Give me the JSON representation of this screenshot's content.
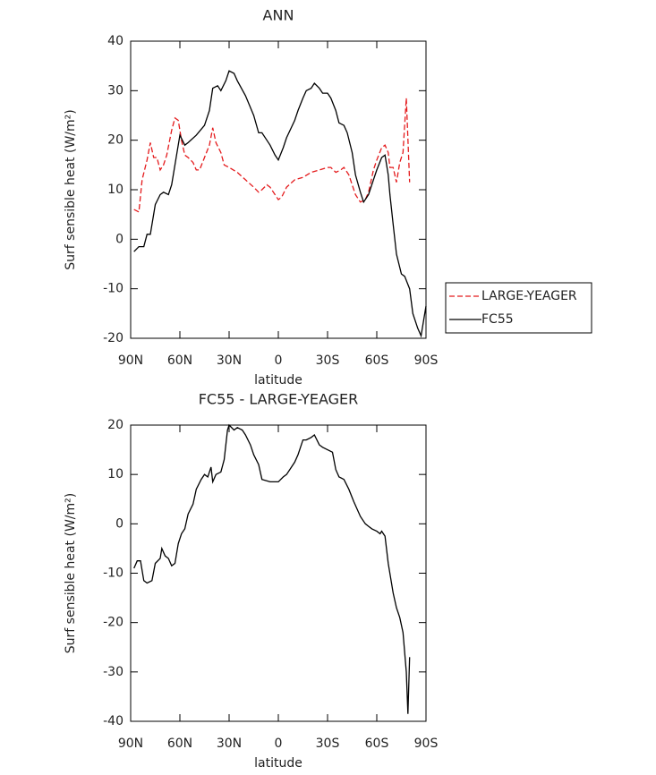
{
  "chart_data": [
    {
      "type": "line",
      "title": "ANN",
      "xlabel": "latitude",
      "ylabel": "Surf sensible heat (W/m²)",
      "xlim": [
        90,
        -90
      ],
      "xticks": [
        {
          "value": 90,
          "label": "90N"
        },
        {
          "value": 60,
          "label": "60N"
        },
        {
          "value": 30,
          "label": "30N"
        },
        0,
        {
          "value": -30,
          "label": "30S"
        },
        {
          "value": -60,
          "label": "60S"
        },
        {
          "value": -90,
          "label": "90S"
        }
      ],
      "ylim": [
        -20,
        40
      ],
      "yticks": [
        -20,
        -10,
        0,
        10,
        20,
        30,
        40
      ],
      "legend": "outside-right",
      "series": [
        {
          "name": "LARGE-YEAGER",
          "color": "#e41a1c",
          "dash": true,
          "x": [
            88,
            85,
            83,
            80,
            78,
            76,
            74,
            72,
            70,
            68,
            65,
            63,
            61,
            59,
            57,
            55,
            52,
            50,
            48,
            45,
            42,
            40,
            38,
            35,
            33,
            30,
            25,
            20,
            15,
            12,
            10,
            7,
            5,
            2,
            0,
            -2,
            -5,
            -10,
            -15,
            -20,
            -25,
            -30,
            -32,
            -35,
            -38,
            -40,
            -43,
            -47,
            -50,
            -53,
            -55,
            -58,
            -60,
            -63,
            -65,
            -67,
            -68,
            -70,
            -72,
            -74,
            -76,
            -78,
            -80
          ],
          "values": [
            6,
            5.5,
            12,
            16,
            19.5,
            16.5,
            16.5,
            14,
            15,
            17,
            22,
            24.5,
            24,
            20,
            17,
            16.5,
            15.5,
            14,
            14,
            16.5,
            19,
            22.5,
            19.5,
            17.5,
            15,
            14.5,
            13.5,
            12,
            10.5,
            9.5,
            10,
            11,
            10.5,
            9,
            8,
            8.5,
            10.5,
            12,
            12.5,
            13.5,
            14,
            14.5,
            14.5,
            13.5,
            14,
            14.5,
            13,
            9,
            7.5,
            8,
            9.5,
            14,
            16,
            18.5,
            19,
            17.5,
            14.5,
            14.5,
            11.5,
            15.5,
            17.5,
            28.5,
            11.5
          ]
        },
        {
          "name": "FC55",
          "color": "#000000",
          "dash": false,
          "x": [
            88,
            85,
            82,
            80,
            78,
            75,
            72,
            70,
            67,
            65,
            62,
            60,
            57,
            55,
            50,
            45,
            42,
            40,
            37,
            35,
            32,
            30,
            27,
            25,
            20,
            15,
            12,
            10,
            7,
            5,
            2,
            0,
            -3,
            -5,
            -10,
            -12,
            -15,
            -17,
            -20,
            -22,
            -25,
            -27,
            -30,
            -32,
            -35,
            -37,
            -40,
            -42,
            -45,
            -47,
            -50,
            -52,
            -55,
            -58,
            -60,
            -63,
            -65,
            -67,
            -68,
            -70,
            -72,
            -75,
            -77,
            -80,
            -82,
            -85,
            -87,
            -90
          ],
          "values": [
            -2.5,
            -1.5,
            -1.5,
            1,
            1,
            7,
            9,
            9.5,
            9,
            11,
            17,
            21,
            19,
            19.5,
            21,
            23,
            26,
            30.5,
            31,
            30,
            32,
            34,
            33.5,
            32,
            29,
            25,
            21.5,
            21.5,
            20,
            19,
            17,
            16,
            18.5,
            20.5,
            24,
            26,
            28.5,
            30,
            30.5,
            31.5,
            30.5,
            29.5,
            29.5,
            28.5,
            26,
            23.5,
            23,
            21.5,
            17.5,
            13,
            9.5,
            7.5,
            9,
            12,
            14,
            16.5,
            17,
            13,
            9,
            3,
            -3,
            -7,
            -7.5,
            -10,
            -15,
            -18,
            -19.5,
            -13.5
          ]
        }
      ]
    },
    {
      "type": "line",
      "title": "FC55 - LARGE-YEAGER",
      "xlabel": "latitude",
      "ylabel": "Surf sensible heat (W/m²)",
      "xlim": [
        90,
        -90
      ],
      "xticks": [
        {
          "value": 90,
          "label": "90N"
        },
        {
          "value": 60,
          "label": "60N"
        },
        {
          "value": 30,
          "label": "30N"
        },
        0,
        {
          "value": -30,
          "label": "30S"
        },
        {
          "value": -60,
          "label": "60S"
        },
        {
          "value": -90,
          "label": "90S"
        }
      ],
      "ylim": [
        -40,
        20
      ],
      "yticks": [
        -40,
        -30,
        -20,
        -10,
        0,
        10,
        20
      ],
      "series": [
        {
          "color": "#000000",
          "dash": false,
          "x": [
            88,
            86,
            84,
            82,
            80,
            77,
            75,
            72,
            71,
            69,
            67,
            65,
            63,
            61,
            59,
            57,
            55,
            52,
            50,
            47,
            45,
            43,
            41,
            40,
            38,
            35,
            33,
            31,
            30,
            27,
            25,
            22,
            20,
            17,
            15,
            12,
            10,
            5,
            2,
            0,
            -3,
            -5,
            -8,
            -10,
            -12,
            -15,
            -17,
            -20,
            -22,
            -25,
            -27,
            -30,
            -33,
            -35,
            -37,
            -40,
            -43,
            -46,
            -50,
            -53,
            -55,
            -57,
            -60,
            -62,
            -63,
            -65,
            -67,
            -70,
            -72,
            -74,
            -76,
            -78,
            -79,
            -80
          ],
          "values": [
            -9,
            -7.5,
            -7.5,
            -11.5,
            -12,
            -11.5,
            -8,
            -7,
            -5,
            -6.5,
            -7,
            -8.5,
            -8,
            -4,
            -2,
            -1,
            2,
            4,
            7,
            9,
            10,
            9.5,
            11.5,
            8.5,
            10,
            10.5,
            13,
            19,
            20,
            19,
            19.5,
            19,
            18,
            16,
            14,
            12,
            9,
            8.5,
            8.5,
            8.5,
            9.5,
            10,
            11.5,
            12.5,
            14,
            17,
            17,
            17.5,
            18,
            16,
            15.5,
            15,
            14.5,
            11,
            9.5,
            9,
            7,
            4.5,
            1.5,
            0,
            -0.5,
            -1,
            -1.5,
            -2,
            -1.5,
            -2.5,
            -8,
            -14,
            -17,
            -19,
            -22,
            -30,
            -38.5,
            -27
          ]
        }
      ]
    }
  ]
}
